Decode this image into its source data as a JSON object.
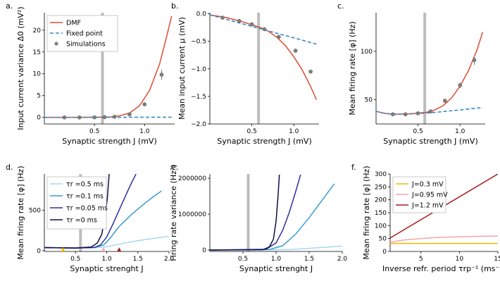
{
  "chart_data": [
    {
      "id": "a",
      "panel_label": "a.",
      "type": "line",
      "title": "",
      "xlabel": "Synaptic strength J (mV)",
      "ylabel": "Input current variance Δ0 (mV²)",
      "xlim": [
        0,
        1.3
      ],
      "ylim": [
        -1.5,
        24
      ],
      "xticks": [
        0.5,
        1.0
      ],
      "xtick_labels": [
        "0.5",
        "1.0"
      ],
      "yticks": [
        0,
        5,
        10,
        15,
        20
      ],
      "ytick_labels": [
        "0",
        "5",
        "10",
        "15",
        "20"
      ],
      "vline_x": 0.58,
      "legend": {
        "placement": "top-left",
        "entries": [
          "DMF",
          "Fixed point",
          "Simulations"
        ]
      },
      "series": [
        {
          "name": "DMF",
          "style": "solid",
          "color": "#e14b32",
          "x": [
            0.0,
            0.3,
            0.55,
            0.65,
            0.75,
            0.85,
            0.95,
            1.05,
            1.15,
            1.22,
            1.27
          ],
          "y": [
            0.02,
            0.02,
            0.05,
            0.1,
            0.35,
            1.0,
            2.7,
            6.2,
            12.3,
            18.5,
            23.2
          ]
        },
        {
          "name": "Fixed point",
          "style": "dashed",
          "color": "#3a8ac4",
          "x": [
            0.0,
            1.27
          ],
          "y": [
            0.0,
            0.05
          ]
        },
        {
          "name": "Simulations",
          "style": "markers",
          "color": "#7f7f7f",
          "x": [
            0.2,
            0.35,
            0.5,
            0.6,
            0.7,
            0.85,
            1.0,
            1.17
          ],
          "y": [
            0.0,
            0.0,
            0.02,
            0.06,
            0.15,
            0.7,
            3.0,
            9.8
          ],
          "err": [
            0,
            0,
            0,
            0,
            0,
            0.2,
            0.3,
            1.2
          ]
        }
      ]
    },
    {
      "id": "b",
      "panel_label": "b.",
      "type": "line",
      "title": "",
      "xlabel": "Synaptic strength J (mV)",
      "ylabel": "Mean input current μ (mV)",
      "xlim": [
        0,
        1.3
      ],
      "ylim": [
        -2.0,
        0.02
      ],
      "xticks": [
        0.5,
        1.0
      ],
      "xtick_labels": [
        "0.5",
        "1.0"
      ],
      "yticks": [
        0.0,
        -0.5,
        -1.0,
        -1.5,
        -2.0
      ],
      "ytick_labels": [
        "0.0",
        "−0.5",
        "−1.0",
        "−1.5",
        "−2.0"
      ],
      "vline_x": 0.58,
      "series": [
        {
          "name": "DMF",
          "style": "solid",
          "color": "#e14b32",
          "x": [
            0.0,
            0.2,
            0.4,
            0.6,
            0.7,
            0.8,
            0.9,
            1.0,
            1.1,
            1.2,
            1.27
          ],
          "y": [
            -0.02,
            -0.07,
            -0.15,
            -0.25,
            -0.32,
            -0.43,
            -0.58,
            -0.78,
            -1.02,
            -1.32,
            -1.56
          ]
        },
        {
          "name": "Fixed point",
          "style": "dashed",
          "color": "#3a8ac4",
          "x": [
            0.0,
            1.27
          ],
          "y": [
            -0.02,
            -0.55
          ]
        },
        {
          "name": "Simulations",
          "style": "markers",
          "color": "#7f7f7f",
          "x": [
            0.15,
            0.35,
            0.5,
            0.65,
            0.82,
            1.02,
            1.2
          ],
          "y": [
            -0.07,
            -0.13,
            -0.19,
            -0.28,
            -0.42,
            -0.67,
            -1.05
          ],
          "err": [
            0,
            0,
            0,
            0,
            0,
            0,
            0
          ]
        }
      ]
    },
    {
      "id": "c",
      "panel_label": "c.",
      "type": "line",
      "title": "",
      "xlabel": "Synaptic strength J (mV)",
      "ylabel": "Mean firing rate [φ] (Hz)",
      "xlim": [
        0,
        1.3
      ],
      "ylim": [
        25,
        140
      ],
      "xticks": [
        0.5,
        1.0
      ],
      "xtick_labels": [
        "0.5",
        "1.0"
      ],
      "yticks": [
        50,
        100
      ],
      "ytick_labels": [
        "50",
        "100"
      ],
      "vline_x": 0.58,
      "series": [
        {
          "name": "DMF",
          "style": "solid",
          "color": "#e14b32",
          "x": [
            0.0,
            0.1,
            0.2,
            0.4,
            0.6,
            0.7,
            0.8,
            0.9,
            1.0,
            1.1,
            1.2,
            1.27
          ],
          "y": [
            38,
            36,
            35,
            35.5,
            37,
            39.5,
            44,
            52,
            64,
            80,
            101,
            120
          ]
        },
        {
          "name": "Fixed point",
          "style": "dashed",
          "color": "#3a8ac4",
          "x": [
            0.0,
            0.1,
            0.2,
            0.4,
            0.6,
            0.8,
            1.0,
            1.27
          ],
          "y": [
            38,
            36,
            35.2,
            35.3,
            36.2,
            37.8,
            39.5,
            42
          ]
        },
        {
          "name": "Simulations",
          "style": "markers",
          "color": "#7f7f7f",
          "x": [
            0.2,
            0.35,
            0.5,
            0.65,
            0.82,
            1.0,
            1.17
          ],
          "y": [
            35,
            35,
            36,
            38,
            49,
            65,
            91
          ],
          "err": [
            0,
            0,
            0,
            0,
            2,
            3,
            5
          ]
        }
      ]
    },
    {
      "id": "d",
      "panel_label": "d.",
      "type": "line",
      "title": "",
      "xlabel": "Synaptic strenght J",
      "ylabel": "Mean firing rate [φ] (Hz)",
      "xlim": [
        0,
        2.0
      ],
      "ylim": [
        -10,
        950
      ],
      "xticks": [
        0.5,
        1.0,
        1.5,
        2.0
      ],
      "xtick_labels": [
        "0.5",
        "1.0",
        "1.5",
        "2.0"
      ],
      "yticks": [
        0,
        500
      ],
      "ytick_labels": [
        "0",
        "500"
      ],
      "vline_x": 0.58,
      "legend": {
        "placement": "top-left",
        "entries": [
          "τr =0.5 ms",
          "τr =0.1 ms",
          "τr =0.05 ms",
          "τr =0 ms"
        ]
      },
      "markers": [
        {
          "x": 0.3,
          "color": "#f2b705"
        },
        {
          "x": 0.95,
          "color": "#f4a6a6"
        },
        {
          "x": 1.2,
          "color": "#a81c1c"
        }
      ],
      "series": [
        {
          "name": "τr =0.5 ms",
          "style": "solid",
          "color": "#a8d8ef",
          "x": [
            0.0,
            0.5,
            0.8,
            1.0,
            1.2,
            1.4,
            1.6,
            1.8,
            2.0
          ],
          "y": [
            38,
            33,
            35,
            48,
            80,
            110,
            135,
            158,
            178
          ]
        },
        {
          "name": "τr =0.1 ms",
          "style": "solid",
          "color": "#3a9ccf",
          "x": [
            0.0,
            0.5,
            0.8,
            0.95,
            1.05,
            1.2,
            1.4,
            1.6,
            1.75,
            1.88
          ],
          "y": [
            38,
            33,
            38,
            70,
            150,
            300,
            450,
            580,
            670,
            740
          ]
        },
        {
          "name": "τr =0.05 ms",
          "style": "solid",
          "color": "#2e2fa0",
          "x": [
            0.0,
            0.5,
            0.8,
            0.9,
            1.0,
            1.1,
            1.25,
            1.38,
            1.47
          ],
          "y": [
            38,
            33,
            40,
            70,
            170,
            330,
            590,
            810,
            950
          ]
        },
        {
          "name": "τr =0 ms",
          "style": "solid",
          "color": "#0e0e44",
          "x": [
            0.0,
            0.5,
            0.75,
            0.85,
            0.92,
            0.97,
            1.01,
            1.04
          ],
          "y": [
            38,
            33,
            45,
            95,
            200,
            400,
            650,
            950
          ]
        }
      ]
    },
    {
      "id": "e",
      "panel_label": "e.",
      "type": "line",
      "title": "",
      "xlabel": "Synaptic strenght J",
      "ylabel": "Firing rate variance (Hz²)",
      "xlim": [
        0,
        2.0
      ],
      "ylim": [
        -40000,
        2120000
      ],
      "xticks": [
        0.5,
        1.0,
        1.5,
        2.0
      ],
      "xtick_labels": [
        "0.5",
        "1.0",
        "1.5",
        "2.0"
      ],
      "yticks": [
        0,
        1000000,
        2000000
      ],
      "ytick_labels": [
        "0",
        "1000000",
        "2000000"
      ],
      "vline_x": 0.58,
      "series": [
        {
          "name": "τr =0.5 ms",
          "style": "solid",
          "color": "#a8d8ef",
          "x": [
            0.0,
            0.8,
            1.2,
            1.4,
            1.6,
            1.8,
            2.0
          ],
          "y": [
            0,
            2000,
            15000,
            35000,
            60000,
            85000,
            110000
          ]
        },
        {
          "name": "τr =0.1 ms",
          "style": "solid",
          "color": "#3a9ccf",
          "x": [
            0.0,
            0.9,
            1.1,
            1.3,
            1.5,
            1.7,
            1.88
          ],
          "y": [
            0,
            15000,
            120000,
            450000,
            900000,
            1400000,
            1850000
          ]
        },
        {
          "name": "τr =0.05 ms",
          "style": "solid",
          "color": "#2e2fa0",
          "x": [
            0.0,
            0.85,
            1.0,
            1.1,
            1.2,
            1.3,
            1.37
          ],
          "y": [
            0,
            20000,
            200000,
            550000,
            1050000,
            1650000,
            2100000
          ]
        },
        {
          "name": "τr =0 ms",
          "style": "solid",
          "color": "#0e0e44",
          "x": [
            0.0,
            0.8,
            0.9,
            0.96,
            1.0,
            1.03,
            1.05
          ],
          "y": [
            0,
            10000,
            90000,
            300000,
            800000,
            1500000,
            2100000
          ]
        }
      ]
    },
    {
      "id": "f",
      "panel_label": "f.",
      "type": "line",
      "title": "",
      "xlabel": "Inverse refr. period τrp⁻¹ (ms⁻¹)",
      "ylabel": "Mean firing rate [φ] (Hz)",
      "xlim": [
        1,
        15
      ],
      "ylim": [
        0,
        300
      ],
      "xticks": [
        5,
        10,
        15
      ],
      "xtick_labels": [
        "5",
        "10",
        "15"
      ],
      "yticks": [
        0,
        50,
        100,
        150,
        200,
        250,
        300
      ],
      "ytick_labels": [
        "0",
        "50",
        "100",
        "150",
        "200",
        "250",
        "300"
      ],
      "legend": {
        "placement": "top-left",
        "entries": [
          "J=0.3 mV",
          "J=0.95 mV",
          "J=1.2 mV"
        ]
      },
      "series": [
        {
          "name": "J=0.3 mV",
          "style": "solid",
          "color": "#f2b705",
          "x": [
            1,
            15
          ],
          "y": [
            31,
            31
          ]
        },
        {
          "name": "J=0.95 mV",
          "style": "solid",
          "color": "#f4a6a6",
          "x": [
            1,
            2,
            3,
            5,
            7,
            10,
            13,
            15
          ],
          "y": [
            35,
            41,
            45,
            50,
            54,
            57,
            59,
            60
          ]
        },
        {
          "name": "J=1.2 mV",
          "style": "solid",
          "color": "#a81c1c",
          "x": [
            1,
            15
          ],
          "y": [
            52,
            300
          ]
        }
      ]
    }
  ]
}
